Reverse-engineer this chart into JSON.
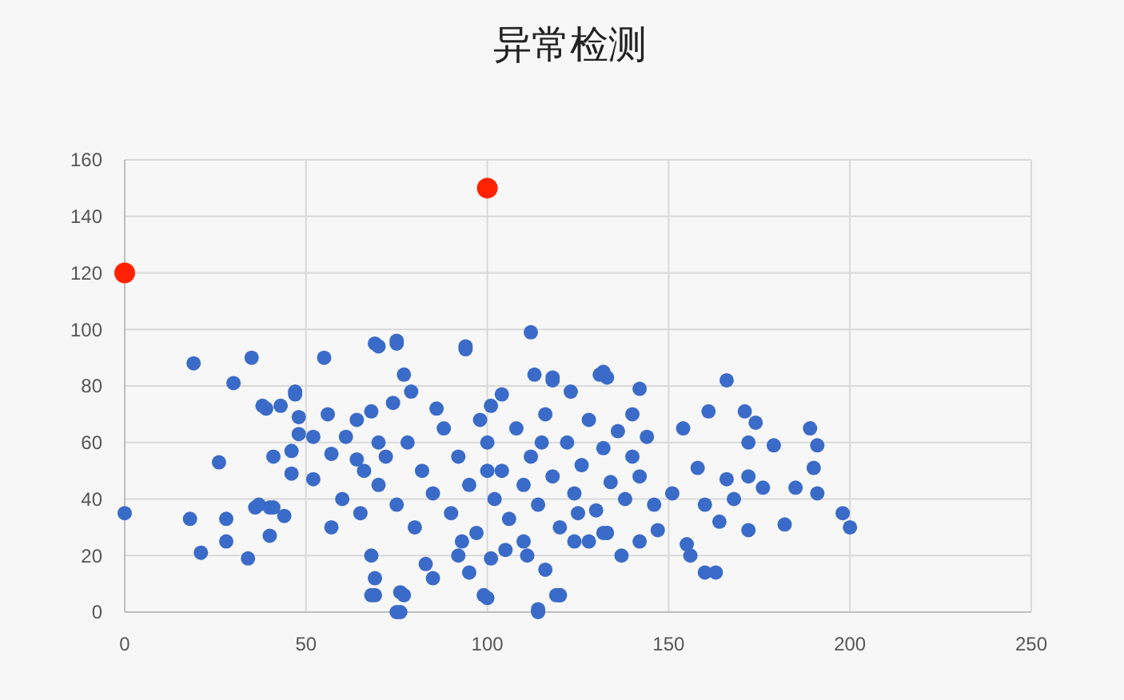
{
  "chart_data": {
    "type": "scatter",
    "title": "异常检测",
    "xlim": [
      0,
      250
    ],
    "ylim": [
      0,
      160
    ],
    "xticks": [
      0,
      50,
      100,
      150,
      200,
      250
    ],
    "yticks": [
      0,
      20,
      40,
      60,
      80,
      100,
      120,
      140,
      160
    ],
    "grid": true,
    "legend": false,
    "marker": "circle",
    "series": [
      {
        "color": "#3a6bc8",
        "x": [
          0,
          19,
          30,
          35,
          26,
          18,
          21,
          28,
          28,
          34,
          39,
          41,
          37,
          47,
          55,
          69,
          75,
          94,
          112,
          69,
          76,
          76,
          99,
          114,
          119,
          133,
          166,
          161,
          171,
          174,
          172,
          179,
          189,
          191,
          190,
          191,
          185,
          182,
          172,
          164,
          160,
          163,
          156,
          155,
          198,
          200,
          176,
          168,
          160,
          154,
          151,
          137,
          120,
          142,
          147,
          133,
          132,
          142,
          118,
          166,
          158,
          172,
          38,
          43,
          47,
          48,
          56,
          41,
          46,
          48,
          52,
          46,
          52,
          36,
          40,
          44,
          40,
          57,
          57,
          61,
          64,
          68,
          74,
          77,
          79,
          64,
          68,
          69,
          68,
          77,
          75,
          83,
          85,
          92,
          95,
          100,
          104,
          101,
          94,
          70,
          75,
          113,
          118,
          123,
          131,
          114,
          120,
          116,
          111,
          101,
          132,
          124,
          60,
          65,
          70,
          72,
          75,
          78,
          80,
          82,
          85,
          88,
          90,
          92,
          95,
          97,
          100,
          102,
          104,
          106,
          108,
          110,
          112,
          114,
          116,
          118,
          120,
          122,
          124,
          126,
          128,
          130,
          132,
          134,
          136,
          138,
          140,
          142,
          144,
          146,
          86,
          98,
          110,
          125,
          70,
          93,
          140,
          128,
          66,
          100,
          115,
          105
        ],
        "values": [
          35,
          88,
          81,
          90,
          53,
          33,
          21,
          33,
          25,
          19,
          72,
          37,
          38,
          78,
          90,
          95,
          96,
          94,
          99,
          6,
          7,
          0,
          6,
          1,
          6,
          83,
          82,
          71,
          71,
          67,
          60,
          59,
          65,
          59,
          51,
          42,
          44,
          31,
          29,
          32,
          14,
          14,
          20,
          24,
          35,
          30,
          44,
          40,
          38,
          65,
          42,
          20,
          6,
          25,
          29,
          28,
          85,
          79,
          83,
          47,
          51,
          48,
          73,
          73,
          77,
          69,
          70,
          55,
          57,
          63,
          62,
          49,
          47,
          37,
          37,
          34,
          27,
          30,
          56,
          62,
          68,
          71,
          74,
          84,
          78,
          54,
          20,
          12,
          6,
          6,
          0,
          17,
          12,
          20,
          14,
          5,
          77,
          73,
          93,
          94,
          95,
          84,
          82,
          78,
          84,
          0,
          6,
          15,
          20,
          19,
          28,
          25,
          40,
          35,
          45,
          55,
          38,
          60,
          30,
          50,
          42,
          65,
          35,
          55,
          45,
          28,
          60,
          40,
          50,
          33,
          65,
          45,
          55,
          38,
          70,
          48,
          30,
          60,
          42,
          52,
          68,
          36,
          58,
          46,
          64,
          40,
          55,
          48,
          62,
          38,
          72,
          68,
          25,
          35,
          60,
          25,
          70,
          25,
          50,
          50,
          60,
          22
        ]
      },
      {
        "color": "#ff2200",
        "x": [
          0,
          100
        ],
        "values": [
          120,
          150
        ]
      }
    ]
  }
}
